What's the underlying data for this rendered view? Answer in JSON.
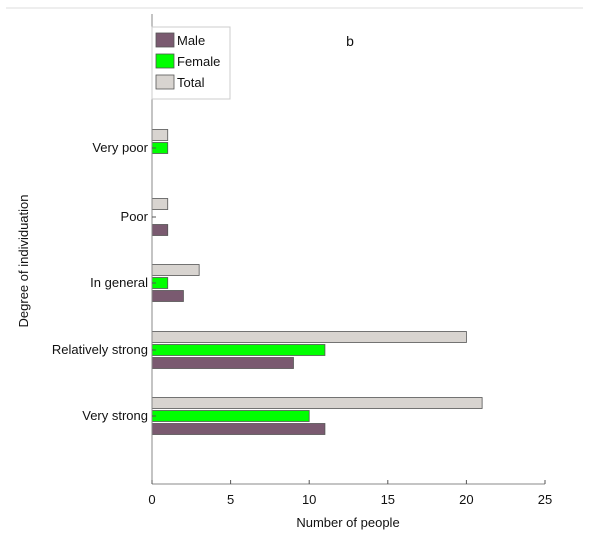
{
  "chart_data": {
    "type": "bar",
    "orientation": "horizontal",
    "panel_label": "b",
    "categories": [
      "Very poor",
      "Poor",
      "In general",
      "Relatively strong",
      "Very strong"
    ],
    "series": [
      {
        "name": "Male",
        "color": "#7a5a70",
        "values": [
          0,
          1,
          2,
          9,
          11
        ]
      },
      {
        "name": "Female",
        "color": "#00ff00",
        "values": [
          1,
          0,
          1,
          11,
          10
        ]
      },
      {
        "name": "Total",
        "color": "#d8d4d0",
        "values": [
          1,
          1,
          3,
          20,
          21
        ]
      }
    ],
    "xlabel": "Number of people",
    "ylabel": "Degree of individuation",
    "xlim": [
      0,
      25
    ],
    "x_ticks": [
      0,
      5,
      10,
      15,
      20,
      25
    ],
    "grid": false,
    "legend_position": "top-left"
  }
}
